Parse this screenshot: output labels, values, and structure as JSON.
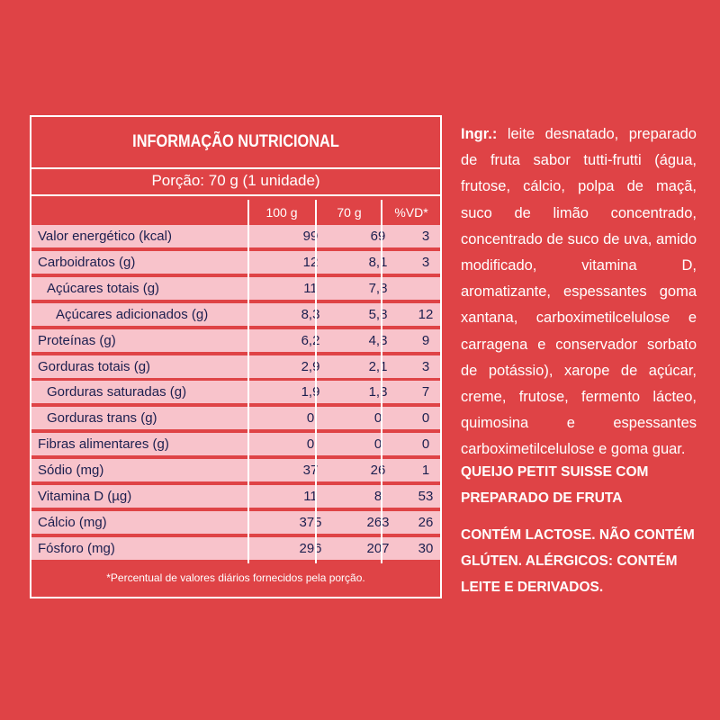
{
  "table": {
    "title": "INFORMAÇÃO NUTRICIONAL",
    "portion": "Porção: 70 g (1 unidade)",
    "headers": [
      "100 g",
      "70 g",
      "%VD*"
    ],
    "rows": [
      {
        "label": "Valor energético (kcal)",
        "v100": "99",
        "v70": "69",
        "vd": "3"
      },
      {
        "label": "Carboidratos (g)",
        "v100": "12",
        "v70": "8,1",
        "vd": "3"
      },
      {
        "label": "Açúcares totais (g)",
        "v100": "11",
        "v70": "7,8",
        "vd": ""
      },
      {
        "label": "Açúcares adicionados (g)",
        "v100": "8,3",
        "v70": "5,8",
        "vd": "12"
      },
      {
        "label": "Proteínas (g)",
        "v100": "6,2",
        "v70": "4,3",
        "vd": "9"
      },
      {
        "label": "Gorduras totais (g)",
        "v100": "2,9",
        "v70": "2,1",
        "vd": "3"
      },
      {
        "label": "Gorduras saturadas (g)",
        "v100": "1,9",
        "v70": "1,3",
        "vd": "7"
      },
      {
        "label": "Gorduras trans (g)",
        "v100": "0",
        "v70": "0",
        "vd": "0"
      },
      {
        "label": "Fibras alimentares (g)",
        "v100": "0",
        "v70": "0",
        "vd": "0"
      },
      {
        "label": "Sódio (mg)",
        "v100": "37",
        "v70": "26",
        "vd": "1"
      },
      {
        "label": "Vitamina D (µg)",
        "v100": "11",
        "v70": "8",
        "vd": "53"
      },
      {
        "label": "Cálcio (mg)",
        "v100": "375",
        "v70": "263",
        "vd": "26"
      },
      {
        "label": "Fósforo (mg)",
        "v100": "296",
        "v70": "207",
        "vd": "30"
      }
    ],
    "footnote": "*Percentual de valores diários fornecidos pela porção."
  },
  "ingredients": {
    "label": "Ingr.:",
    "text": "leite desnatado, preparado de fruta sabor tutti-frutti (água, frutose, cálcio, polpa de maçã, suco de limão concentrado, concentrado de suco de uva, amido modificado, vitamina D, aromatizante, espessantes goma xantana, carboximetilcelulose e carragena e conservador sorbato de potássio), xarope de açúcar, creme, frutose, fermento lácteo, quimosina e espessantes carboximetilcelulose e goma guar."
  },
  "product_name": "QUEIJO PETIT SUISSE COM PREPARADO DE FRUTA",
  "allergen_info": "CONTÉM LACTOSE. NÃO CONTÉM GLÚTEN. ALÉRGICOS: CONTÉM LEITE E DERIVADOS.",
  "colors": {
    "background": "#df4346",
    "row_fill": "#f8c3cb",
    "row_text": "#1b1f4f",
    "text": "#ffffff"
  }
}
